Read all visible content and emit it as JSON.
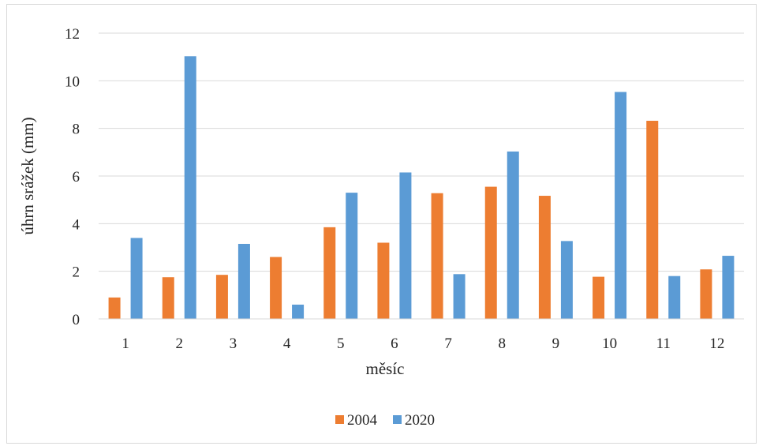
{
  "chart_data": {
    "type": "bar",
    "title": "",
    "xlabel": "měsíc",
    "ylabel": "úhrn srážek (mm)",
    "ylim": [
      0,
      12
    ],
    "yticks": [
      0,
      2,
      4,
      6,
      8,
      10,
      12
    ],
    "categories": [
      "1",
      "2",
      "3",
      "4",
      "5",
      "6",
      "7",
      "8",
      "9",
      "10",
      "11",
      "12"
    ],
    "series": [
      {
        "name": "2004",
        "color": "#ed7d31",
        "values": [
          0.9,
          1.75,
          1.85,
          2.6,
          3.85,
          3.2,
          5.28,
          5.55,
          5.17,
          1.77,
          8.32,
          2.08
        ]
      },
      {
        "name": "2020",
        "color": "#5b9bd5",
        "values": [
          3.4,
          11.03,
          3.15,
          0.6,
          5.3,
          6.15,
          1.88,
          7.03,
          3.27,
          9.53,
          1.8,
          2.65
        ]
      }
    ],
    "grid": true,
    "legend_position": "bottom-center"
  }
}
